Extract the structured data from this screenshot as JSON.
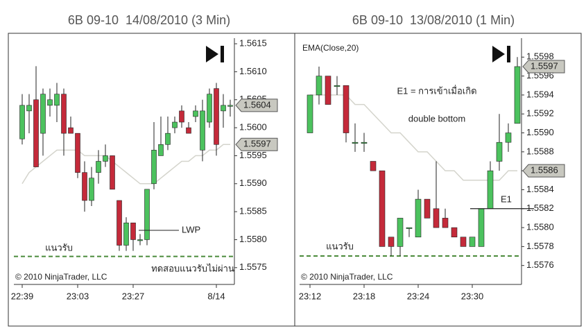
{
  "chart_data": [
    {
      "type": "candlestick",
      "title": "6B 09-10  14/08/2010 (3 Min)",
      "categories": [
        "22:39",
        null,
        null,
        null,
        null,
        null,
        null,
        null,
        "23:03",
        null,
        null,
        null,
        null,
        null,
        null,
        null,
        "23:27",
        null,
        null,
        null,
        null,
        null,
        null,
        null,
        null,
        null,
        null,
        null,
        "8/14",
        null,
        null
      ],
      "open": [
        1.5598,
        1.5603,
        1.5605,
        1.5599,
        1.5604,
        1.5604,
        1.5606,
        1.56,
        1.5599,
        1.5592,
        1.5587,
        1.5592,
        1.5594,
        1.5595,
        1.5587,
        1.5579,
        1.5583,
        1.558,
        1.558,
        1.559,
        1.5595,
        1.5597,
        1.56,
        1.5603,
        1.56,
        1.5602,
        1.5596,
        1.5601,
        1.5607,
        1.5603,
        1.5604
      ],
      "high": [
        1.5606,
        1.5606,
        1.5611,
        1.5607,
        1.5607,
        1.5608,
        1.5607,
        1.5602,
        1.5599,
        1.5594,
        1.5593,
        1.5596,
        1.5597,
        1.5595,
        1.5587,
        1.5584,
        1.5583,
        1.5581,
        1.5589,
        1.5601,
        1.5602,
        1.5602,
        1.5602,
        1.5604,
        1.5601,
        1.5604,
        1.5605,
        1.5607,
        1.5608,
        1.5606,
        1.5605
      ],
      "low": [
        1.5597,
        1.5599,
        1.5593,
        1.5595,
        1.5602,
        1.5601,
        1.5595,
        1.5599,
        1.5591,
        1.5585,
        1.5586,
        1.559,
        1.5593,
        1.5589,
        1.5578,
        1.5578,
        1.5578,
        1.5579,
        1.5579,
        1.5589,
        1.5595,
        1.5596,
        1.5599,
        1.56,
        1.5599,
        1.5601,
        1.5594,
        1.56,
        1.5595,
        1.56,
        1.5602
      ],
      "close": [
        1.5604,
        1.5604,
        1.5593,
        1.5606,
        1.5605,
        1.5606,
        1.5599,
        1.5599,
        1.5592,
        1.5587,
        1.5591,
        1.5594,
        1.5595,
        1.5589,
        1.5579,
        1.5583,
        1.558,
        1.558,
        1.5589,
        1.5596,
        1.5597,
        1.5599,
        1.5601,
        1.5601,
        1.5599,
        1.5603,
        1.5603,
        1.5606,
        1.5597,
        1.5604,
        1.5604
      ],
      "ema": [
        1.559,
        1.5592,
        1.5593,
        1.5594,
        1.5595,
        1.5596,
        1.5596,
        1.5596,
        1.5596,
        1.5595,
        1.5595,
        1.5595,
        1.5595,
        1.5594,
        1.5593,
        1.5592,
        1.5591,
        1.559,
        1.559,
        1.559,
        1.5591,
        1.5592,
        1.5593,
        1.5594,
        1.5594,
        1.5595,
        1.5595,
        1.5596,
        1.5596,
        1.5597,
        1.5597
      ],
      "up_color": "#4cc25e",
      "down_color": "#c42a3a",
      "ema_color": "#d4d4cc",
      "ylim": [
        1.5572,
        1.5616
      ],
      "yticks": [
        1.5615,
        {
          "value": 1.561,
          "label": "1.5610"
        },
        1.5605,
        {
          "value": 1.56,
          "label": "1.5600"
        },
        1.5595,
        {
          "value": 1.559,
          "label": "1.5590"
        },
        1.5585,
        {
          "value": 1.558,
          "label": "1.5580"
        },
        1.5575
      ],
      "price_markers": [
        1.5604,
        1.5597
      ],
      "support": 1.5577,
      "support_label": "แนวรับ",
      "annotations": [
        "LWP",
        "ทดสอบแนวรับไม่ผ่าน"
      ],
      "copyright": "© 2010 NinjaTrader, LLC"
    },
    {
      "type": "candlestick",
      "title": "6B 09-10  13/08/2010 (1 Min)",
      "categories": [
        "23:12",
        null,
        null,
        null,
        null,
        null,
        "23:18",
        null,
        null,
        null,
        null,
        null,
        "23:24",
        null,
        null,
        null,
        null,
        null,
        "23:30",
        null,
        null,
        null,
        null,
        null
      ],
      "open": [
        1.559,
        1.5594,
        1.5596,
        1.5595,
        1.5595,
        1.5589,
        1.5589,
        1.5587,
        1.5586,
        1.5579,
        1.5578,
        1.558,
        1.5579,
        1.5583,
        1.5582,
        1.5581,
        1.558,
        1.5579,
        1.5578,
        1.5578,
        1.5582,
        1.5587,
        1.5589,
        1.5591
      ],
      "high": [
        1.5594,
        1.5597,
        1.5596,
        1.5596,
        1.5595,
        1.5591,
        1.559,
        1.5587,
        1.5586,
        1.5579,
        1.5581,
        1.558,
        1.5584,
        1.5583,
        1.5587,
        1.5582,
        1.558,
        1.5579,
        1.5579,
        1.5582,
        1.5587,
        1.5592,
        1.5591,
        1.5598
      ],
      "low": [
        1.559,
        1.5593,
        1.5593,
        1.5594,
        1.5589,
        1.5588,
        1.5588,
        1.5586,
        1.5578,
        1.5577,
        1.5577,
        1.5579,
        1.5579,
        1.5581,
        1.558,
        1.558,
        1.5579,
        1.5578,
        1.5578,
        1.5578,
        1.5582,
        1.5586,
        1.5588,
        1.5591
      ],
      "close": [
        1.5594,
        1.5596,
        1.5593,
        1.5595,
        1.559,
        1.5589,
        1.5589,
        1.5586,
        1.5578,
        1.5578,
        1.5581,
        1.558,
        1.5583,
        1.5581,
        1.558,
        1.558,
        1.5579,
        1.5578,
        1.5579,
        1.5582,
        1.5586,
        1.5589,
        1.559,
        1.5597
      ],
      "ema": [
        1.5594,
        1.5594,
        1.5594,
        1.5594,
        1.5594,
        1.5593,
        1.5593,
        1.5592,
        1.5591,
        1.559,
        1.559,
        1.5589,
        1.5588,
        1.5588,
        1.5587,
        1.5586,
        1.5586,
        1.5585,
        1.5585,
        1.5585,
        1.5585,
        1.5585,
        1.5586,
        1.5586
      ],
      "up_color": "#4cc25e",
      "down_color": "#c42a3a",
      "ema_color": "#d4d4cc",
      "ylim": [
        1.5574,
        1.56
      ],
      "yticks": [
        1.5598,
        1.5596,
        1.5594,
        1.5592,
        {
          "value": 1.559,
          "label": "1.5590"
        },
        1.5588,
        1.5586,
        1.5584,
        1.5582,
        {
          "value": 1.558,
          "label": "1.5580"
        },
        1.5578,
        1.5576
      ],
      "price_markers": [
        1.5597,
        1.5586
      ],
      "support": 1.5577,
      "support_label": "แนวรับ",
      "entry_level": 1.5582,
      "indicator_label": "EMA(Close,20)",
      "annotations": [
        "E1 = การเข้าเมื่อเกิด",
        "double bottom",
        "E1"
      ],
      "copyright": "© 2010 NinjaTrader, LLC"
    }
  ]
}
